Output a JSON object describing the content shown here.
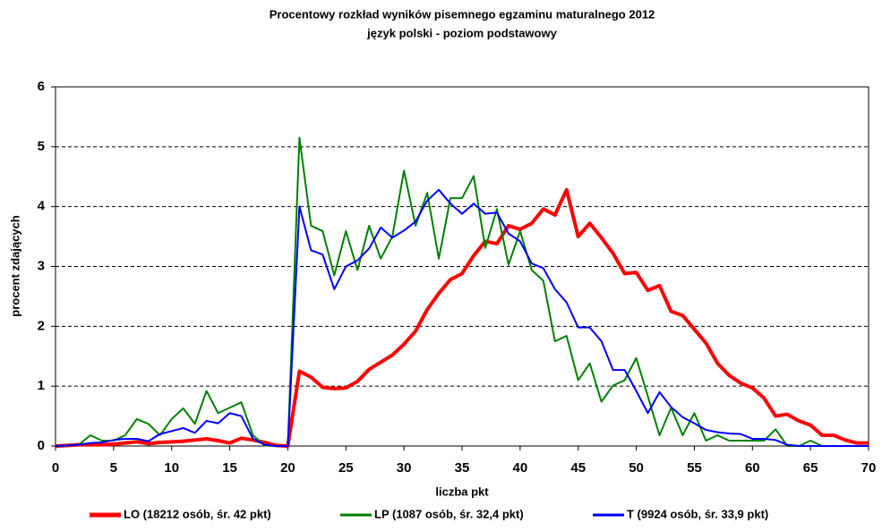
{
  "chart_data": {
    "type": "line",
    "title": "Procentowy rozkład wyników pisemnego egzaminu maturalnego 2012",
    "subtitle": "język polski - poziom podstawowy",
    "x_label": "liczba pkt",
    "y_label": "procent zdających",
    "x": [
      0,
      1,
      2,
      3,
      4,
      5,
      6,
      7,
      8,
      9,
      10,
      11,
      12,
      13,
      14,
      15,
      16,
      17,
      18,
      19,
      20,
      21,
      22,
      23,
      24,
      25,
      26,
      27,
      28,
      29,
      30,
      31,
      32,
      33,
      34,
      35,
      36,
      37,
      38,
      39,
      40,
      41,
      42,
      43,
      44,
      45,
      46,
      47,
      48,
      49,
      50,
      51,
      52,
      53,
      54,
      55,
      56,
      57,
      58,
      59,
      60,
      61,
      62,
      63,
      64,
      65,
      66,
      67,
      68,
      69,
      70
    ],
    "series": [
      {
        "name": "LO (18212 osób, śr. 42 pkt)",
        "color": "#ff0000",
        "values": [
          0,
          0.01,
          0.02,
          0.02,
          0.02,
          0.03,
          0.05,
          0.07,
          0.04,
          0.06,
          0.07,
          0.08,
          0.1,
          0.12,
          0.09,
          0.05,
          0.13,
          0.1,
          0.06,
          0.01,
          0,
          1.25,
          1.15,
          0.98,
          0.96,
          0.97,
          1.08,
          1.28,
          1.4,
          1.52,
          1.7,
          1.92,
          2.28,
          2.55,
          2.78,
          2.88,
          3.18,
          3.42,
          3.38,
          3.68,
          3.62,
          3.72,
          3.96,
          3.86,
          4.28,
          3.5,
          3.72,
          3.48,
          3.22,
          2.88,
          2.9,
          2.6,
          2.68,
          2.25,
          2.18,
          1.95,
          1.72,
          1.38,
          1.18,
          1.05,
          0.97,
          0.8,
          0.5,
          0.53,
          0.42,
          0.35,
          0.18,
          0.18,
          0.1,
          0.05,
          0.05
        ]
      },
      {
        "name": "LP (1087 osób, śr. 32,4 pkt)",
        "color": "#008000",
        "values": [
          0,
          0.01,
          0.02,
          0.18,
          0.09,
          0.09,
          0.18,
          0.45,
          0.37,
          0.18,
          0.45,
          0.63,
          0.37,
          0.92,
          0.55,
          0.64,
          0.73,
          0.18,
          0.01,
          0,
          0,
          5.15,
          3.68,
          3.59,
          2.85,
          3.59,
          2.94,
          3.68,
          3.13,
          3.5,
          4.6,
          3.68,
          4.23,
          3.13,
          4.14,
          4.14,
          4.51,
          3.31,
          3.96,
          3.03,
          3.59,
          2.94,
          2.76,
          1.75,
          1.84,
          1.1,
          1.38,
          0.74,
          1.01,
          1.1,
          1.47,
          0.83,
          0.18,
          0.64,
          0.18,
          0.55,
          0.09,
          0.18,
          0.09,
          0.09,
          0.09,
          0.09,
          0.28,
          0,
          0,
          0.09,
          0,
          0,
          0,
          0,
          0
        ]
      },
      {
        "name": "T (9924 osób, śr. 33,9 pkt)",
        "color": "#0000ff",
        "values": [
          0,
          0.01,
          0.02,
          0.05,
          0.06,
          0.1,
          0.12,
          0.12,
          0.08,
          0.2,
          0.25,
          0.3,
          0.22,
          0.42,
          0.38,
          0.55,
          0.5,
          0.12,
          0.02,
          0,
          0,
          4.0,
          3.27,
          3.2,
          2.62,
          3.0,
          3.1,
          3.3,
          3.65,
          3.48,
          3.6,
          3.75,
          4.1,
          4.28,
          4.05,
          3.88,
          4.05,
          3.88,
          3.9,
          3.55,
          3.42,
          3.05,
          2.97,
          2.62,
          2.4,
          1.98,
          1.98,
          1.75,
          1.27,
          1.27,
          0.92,
          0.55,
          0.9,
          0.65,
          0.48,
          0.38,
          0.27,
          0.23,
          0.21,
          0.2,
          0.12,
          0.12,
          0.1,
          0.02,
          0,
          0,
          0,
          0,
          0,
          0,
          0
        ]
      }
    ],
    "xlim": [
      0,
      70
    ],
    "xticks": [
      0,
      5,
      10,
      15,
      20,
      25,
      30,
      35,
      40,
      45,
      50,
      55,
      60,
      65,
      70
    ],
    "ylim": [
      0,
      6
    ],
    "yticks": [
      0,
      1,
      2,
      3,
      4,
      5,
      6
    ],
    "grid": true,
    "legend": "bottom"
  }
}
